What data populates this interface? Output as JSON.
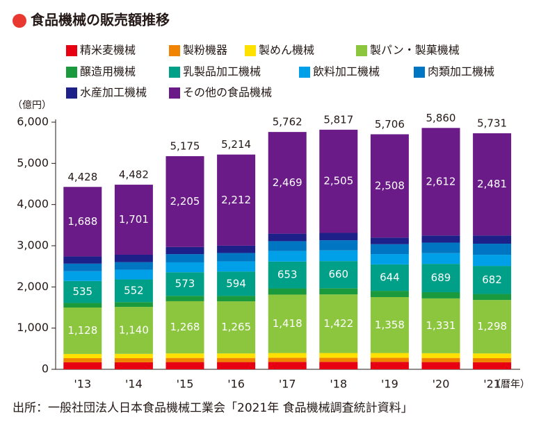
{
  "chart_data": {
    "type": "stacked_bar",
    "title": "食品機械の販売額推移",
    "y_unit": "（億円）",
    "x_unit": "（暦年）",
    "source": "出所：一般社団法人日本食品機械工業会「2021年 食品機械調査統計資料」",
    "categories": [
      "'13",
      "'14",
      "'15",
      "'16",
      "'17",
      "'18",
      "'19",
      "'20",
      "'21"
    ],
    "ylim": [
      0,
      6000
    ],
    "yticks": [
      0,
      {
        "value": 1000,
        "label": "1,000"
      },
      {
        "value": 2000,
        "label": "2,000"
      },
      {
        "value": 3000,
        "label": "3,000"
      },
      {
        "value": 4000,
        "label": "4,000"
      },
      {
        "value": 5000,
        "label": "5,000"
      },
      {
        "value": 6000,
        "label": "6,000"
      }
    ],
    "series": [
      {
        "name": "精米麦機械",
        "color": "#e60012",
        "values": [
          170,
          170,
          175,
          175,
          180,
          180,
          180,
          175,
          170
        ]
      },
      {
        "name": "製粉機器",
        "color": "#f08300",
        "values": [
          100,
          100,
          100,
          100,
          100,
          100,
          100,
          100,
          100
        ]
      },
      {
        "name": "製めん機械",
        "color": "#ffe100",
        "values": [
          102,
          105,
          110,
          110,
          115,
          115,
          115,
          115,
          115
        ]
      },
      {
        "name": "製パン・製菓機械",
        "color": "#8cc63f",
        "values": [
          1128,
          1140,
          1268,
          1265,
          1418,
          1422,
          1358,
          1331,
          1298
        ],
        "labels": true,
        "value_labels": [
          "1,128",
          "1,140",
          "1,268",
          "1,265",
          "1,418",
          "1,422",
          "1,358",
          "1,331",
          "1,298"
        ]
      },
      {
        "name": "醸造用機械",
        "color": "#1a9a3c",
        "values": [
          110,
          115,
          130,
          130,
          150,
          150,
          150,
          150,
          145
        ]
      },
      {
        "name": "乳製品加工機械",
        "color": "#00a088",
        "values": [
          535,
          552,
          573,
          594,
          653,
          660,
          644,
          689,
          682
        ],
        "labels": true
      },
      {
        "name": "飲料加工機械",
        "color": "#00a0e9",
        "values": [
          235,
          235,
          240,
          245,
          255,
          260,
          250,
          260,
          270
        ]
      },
      {
        "name": "肉類加工機械",
        "color": "#0075c2",
        "values": [
          185,
          185,
          200,
          205,
          240,
          245,
          240,
          255,
          270
        ]
      },
      {
        "name": "水産加工機械",
        "color": "#1d2088",
        "values": [
          175,
          179,
          174,
          178,
          182,
          180,
          161,
          173,
          200
        ]
      },
      {
        "name": "その他の食品機械",
        "color": "#6a1b87",
        "values": [
          1688,
          1701,
          2205,
          2212,
          2469,
          2505,
          2508,
          2612,
          2481
        ],
        "labels": true,
        "value_labels": [
          "1,688",
          "1,701",
          "2,205",
          "2,212",
          "2,469",
          "2,505",
          "2,508",
          "2,612",
          "2,481"
        ]
      }
    ],
    "totals": {
      "values": [
        4428,
        4482,
        5175,
        5214,
        5762,
        5817,
        5706,
        5860,
        5731
      ],
      "value_labels": [
        "4,428",
        "4,482",
        "5,175",
        "5,214",
        "5,762",
        "5,817",
        "5,706",
        "5,860",
        "5,731"
      ]
    }
  }
}
